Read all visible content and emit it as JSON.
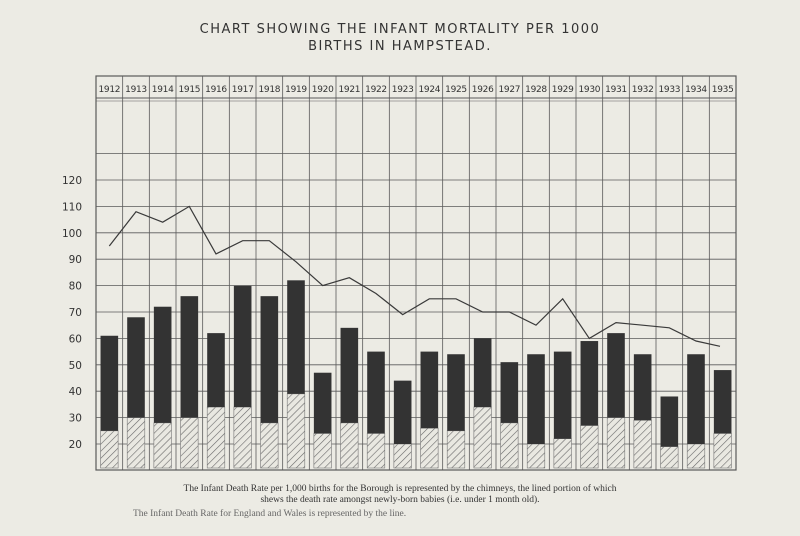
{
  "title_line1": "CHART SHOWING THE INFANT MORTALITY PER 1000",
  "title_line2": "BIRTHS IN HAMPSTEAD.",
  "caption_line1": "The Infant Death Rate per 1,000 births for the Borough is represented by the chimneys, the lined portion of which",
  "caption_line2": "shews the death rate amongst newly-born babies (i.e. under 1 month old).",
  "caption_line3": "The Infant Death Rate for England and Wales is represented by the line.",
  "chart_data": {
    "type": "bar",
    "categories": [
      "1912",
      "1913",
      "1914",
      "1915",
      "1916",
      "1917",
      "1918",
      "1919",
      "1920",
      "1921",
      "1922",
      "1923",
      "1924",
      "1925",
      "1926",
      "1927",
      "1928",
      "1929",
      "1930",
      "1931",
      "1932",
      "1933",
      "1934",
      "1935"
    ],
    "series": [
      {
        "name": "",
        "role": "total",
        "values": [
          61,
          68,
          72,
          76,
          62,
          80,
          76,
          82,
          47,
          64,
          55,
          44,
          55,
          54,
          60,
          51,
          54,
          55,
          59,
          62,
          54,
          38,
          54,
          48
        ]
      },
      {
        "name": "",
        "role": "newborn",
        "values": [
          25,
          30,
          28,
          30,
          34,
          34,
          28,
          39,
          24,
          28,
          24,
          20,
          26,
          25,
          34,
          28,
          20,
          22,
          27,
          30,
          29,
          19,
          20,
          24
        ]
      },
      {
        "name": "",
        "role": "england-wales",
        "values": [
          95,
          108,
          104,
          110,
          92,
          97,
          97,
          89,
          80,
          83,
          77,
          69,
          75,
          75,
          70,
          70,
          65,
          75,
          60,
          66,
          65,
          64,
          59,
          57
        ]
      }
    ],
    "y_ticks": [
      20,
      30,
      40,
      50,
      60,
      70,
      80,
      90,
      100,
      110,
      120
    ],
    "ylim": [
      0,
      130
    ],
    "grid": true,
    "colors": {
      "chimney": "#333333",
      "hatch": "#6a6a6a",
      "line": "#3a3a3a",
      "grid": "#5a5a5a"
    }
  }
}
